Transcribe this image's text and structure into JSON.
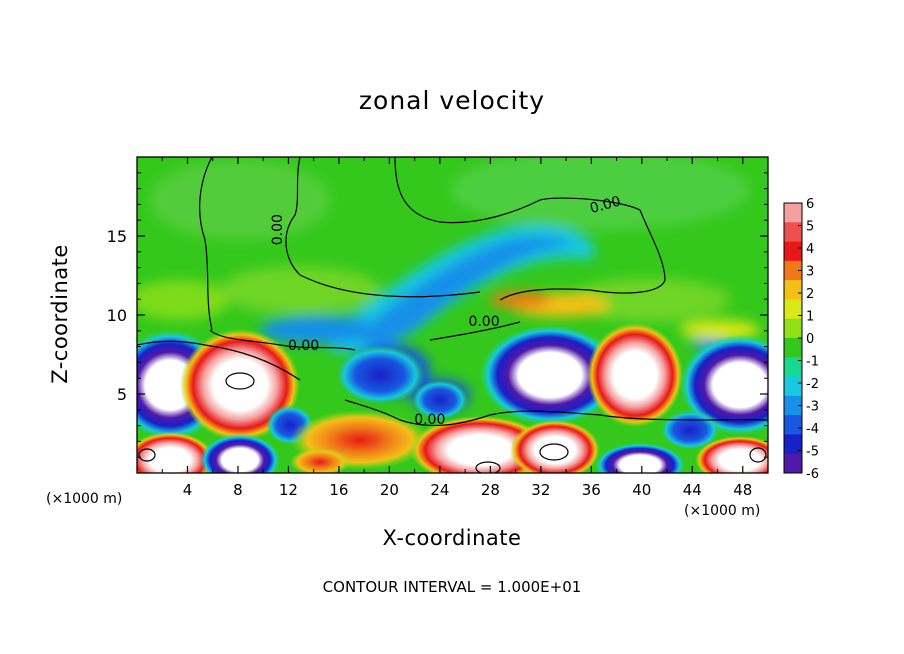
{
  "chart_data": {
    "type": "heatmap",
    "title": "zonal velocity",
    "xlabel": "X-coordinate",
    "ylabel": "Z-coordinate",
    "x_unit": "(×1000 m)",
    "x_ticks": [
      4,
      8,
      12,
      16,
      20,
      24,
      28,
      32,
      36,
      40,
      44,
      48
    ],
    "y_ticks": [
      5,
      10,
      15
    ],
    "xlim": [
      0,
      50
    ],
    "ylim": [
      0,
      20
    ],
    "colorbar": {
      "ticks": [
        6,
        5,
        4,
        3,
        2,
        1,
        0,
        -1,
        -2,
        -3,
        -4,
        -5,
        -6
      ],
      "colors": [
        "#f4a0a0",
        "#ee5050",
        "#e81818",
        "#f07818",
        "#f4c018",
        "#d8e818",
        "#90e018",
        "#34c81c",
        "#18d890",
        "#18c8e0",
        "#1890e8",
        "#1858e0",
        "#1820c8",
        "#5018a8"
      ],
      "range": [
        -6,
        6
      ]
    },
    "contour_labels": [
      "0.00",
      "0.00",
      "0.00",
      "0.00",
      "0.00"
    ],
    "footnote": "CONTOUR INTERVAL = 1.000E+01"
  }
}
